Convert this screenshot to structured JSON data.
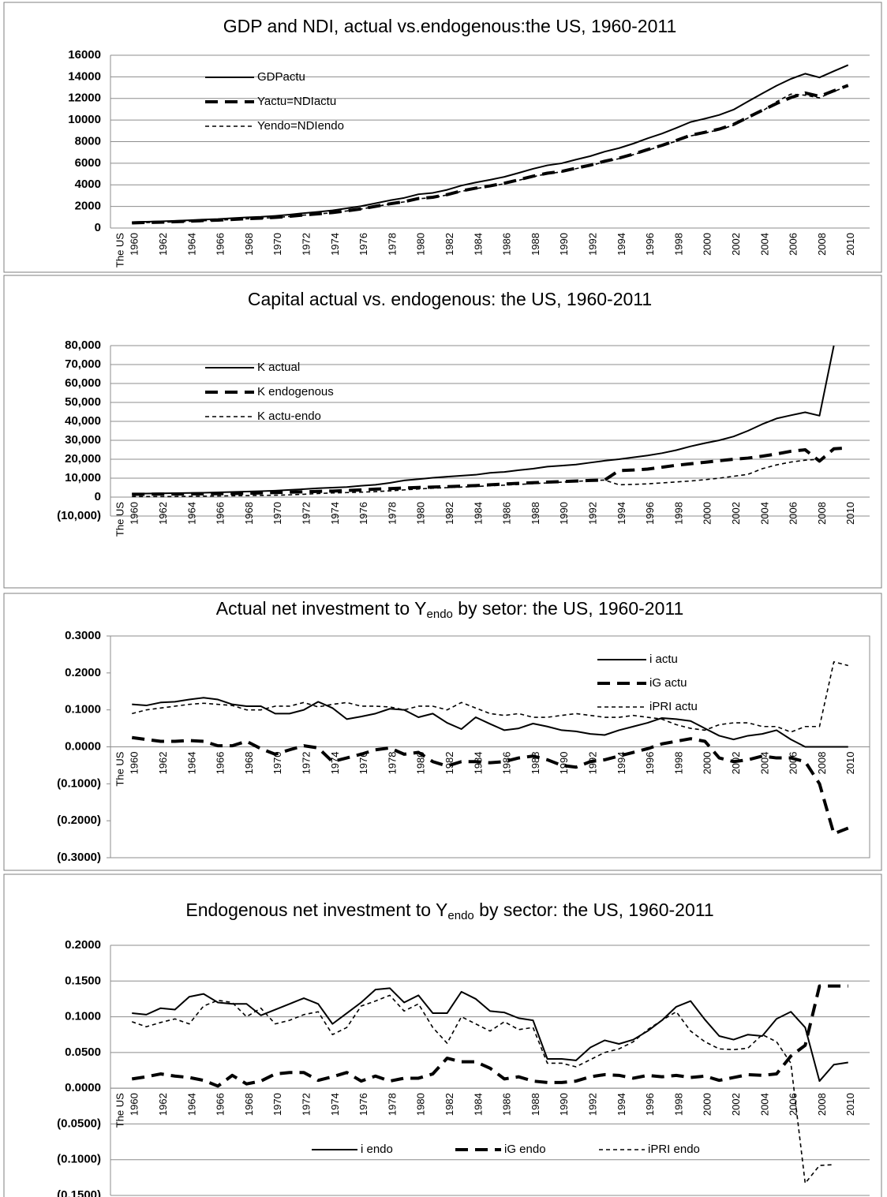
{
  "chart_data": [
    {
      "type": "line",
      "title": "GDP and NDI, actual vs.endogenous:the US, 1960-2011",
      "categories": [
        "The US",
        "1960",
        null,
        "1962",
        null,
        "1964",
        null,
        "1966",
        null,
        "1968",
        null,
        "1970",
        null,
        "1972",
        null,
        "1974",
        null,
        "1976",
        null,
        "1978",
        null,
        "1980",
        null,
        "1982",
        null,
        "1984",
        null,
        "1986",
        null,
        "1988",
        null,
        "1990",
        null,
        "1992",
        null,
        "1994",
        null,
        "1996",
        null,
        "1998",
        null,
        "2000",
        null,
        "2002",
        null,
        "2004",
        null,
        "2006",
        null,
        "2008",
        null,
        "2010",
        null
      ],
      "ylim": [
        0,
        16000
      ],
      "yticks": [
        0,
        2000,
        4000,
        6000,
        8000,
        10000,
        12000,
        14000,
        16000
      ],
      "grid": true,
      "legend": "upper left",
      "series": [
        {
          "name": "GDPactu",
          "color": "#000000",
          "line_style": "solid",
          "values": [
            null,
            545,
            586,
            618,
            664,
            719,
            788,
            833,
            910,
            985,
            1039,
            1127,
            1238,
            1383,
            1500,
            1638,
            1825,
            2030,
            2294,
            2563,
            2789,
            3128,
            3255,
            3537,
            3933,
            4220,
            4463,
            4740,
            5104,
            5484,
            5803,
            5996,
            6338,
            6657,
            7072,
            7398,
            7817,
            8304,
            8747,
            9268,
            9817,
            10128,
            10470,
            10961,
            11713,
            12456,
            13178,
            13808,
            14291,
            13939,
            14527,
            15094,
            null
          ]
        },
        {
          "name": "Yactu=NDIactu",
          "color": "#000000",
          "line_style": "long-dash",
          "values": [
            null,
            477,
            513,
            541,
            581,
            629,
            690,
            729,
            796,
            862,
            909,
            986,
            1083,
            1210,
            1313,
            1433,
            1597,
            1776,
            2007,
            2243,
            2440,
            2737,
            2848,
            3095,
            3441,
            3693,
            3905,
            4148,
            4466,
            4799,
            5078,
            5247,
            5546,
            5825,
            6188,
            6473,
            6840,
            7266,
            7654,
            8110,
            8590,
            8862,
            9161,
            9591,
            10249,
            10899,
            11531,
            12082,
            12505,
            12197,
            12711,
            13207,
            null
          ]
        },
        {
          "name": "Yendo=NDIendo",
          "color": "#000000",
          "line_style": "short-dash",
          "values": [
            null,
            470,
            505,
            535,
            575,
            620,
            680,
            720,
            785,
            850,
            900,
            975,
            1070,
            1195,
            1300,
            1420,
            1580,
            1760,
            1990,
            2220,
            2420,
            2710,
            2820,
            3060,
            3400,
            3650,
            3860,
            4100,
            4420,
            4750,
            5030,
            5200,
            5500,
            5780,
            6140,
            6420,
            6790,
            7210,
            7600,
            8050,
            8530,
            8800,
            9100,
            9520,
            10180,
            10820,
            11700,
            12400,
            12300,
            12050,
            12650,
            13150,
            null
          ]
        }
      ]
    },
    {
      "type": "line",
      "title": "Capital actual vs. endogenous: the US, 1960-2011",
      "categories": [
        "The US",
        "1960",
        null,
        "1962",
        null,
        "1964",
        null,
        "1966",
        null,
        "1968",
        null,
        "1970",
        null,
        "1972",
        null,
        "1974",
        null,
        "1976",
        null,
        "1978",
        null,
        "1980",
        null,
        "1982",
        null,
        "1984",
        null,
        "1986",
        null,
        "1988",
        null,
        "1990",
        null,
        "1992",
        null,
        "1994",
        null,
        "1996",
        null,
        "1998",
        null,
        "2000",
        null,
        "2002",
        null,
        "2004",
        null,
        "2006",
        null,
        "2008",
        null,
        "2010",
        null
      ],
      "ylim": [
        -10000,
        80000
      ],
      "yticks": [
        {
          "value": -10000,
          "label": "(10,000)"
        },
        0,
        {
          "value": 10000,
          "label": "10,000"
        },
        {
          "value": 20000,
          "label": "20,000"
        },
        {
          "value": 30000,
          "label": "30,000"
        },
        {
          "value": 40000,
          "label": "40,000"
        },
        {
          "value": 50000,
          "label": "50,000"
        },
        {
          "value": 60000,
          "label": "60,000"
        },
        {
          "value": 70000,
          "label": "70,000"
        },
        {
          "value": 80000,
          "label": "80,000"
        }
      ],
      "grid": true,
      "legend": "upper left",
      "series": [
        {
          "name": "K actual",
          "color": "#000000",
          "line_style": "solid",
          "values": [
            null,
            1800,
            1900,
            2000,
            2100,
            2200,
            2300,
            2500,
            2700,
            2900,
            3100,
            3400,
            3800,
            4200,
            4700,
            5000,
            5300,
            6000,
            6500,
            7500,
            8800,
            9500,
            10200,
            10800,
            11300,
            11800,
            12800,
            13300,
            14200,
            15000,
            16100,
            16600,
            17200,
            18200,
            19200,
            20000,
            21000,
            22000,
            23200,
            24800,
            26800,
            28500,
            30000,
            32000,
            35000,
            38500,
            41500,
            43200,
            44800,
            43000,
            80000,
            null,
            null
          ]
        },
        {
          "name": "K endogenous",
          "color": "#000000",
          "line_style": "long-dash",
          "values": [
            null,
            1500,
            1500,
            1600,
            1600,
            1700,
            1700,
            1800,
            1900,
            2000,
            2200,
            2400,
            2600,
            2800,
            3000,
            3200,
            3500,
            3800,
            4200,
            4500,
            4800,
            5100,
            5300,
            5500,
            5800,
            6100,
            6500,
            6900,
            7300,
            7600,
            7900,
            8200,
            8500,
            8800,
            9000,
            14000,
            14300,
            14800,
            15800,
            16800,
            17600,
            18400,
            19200,
            20000,
            20600,
            21600,
            22800,
            24200,
            25000,
            19000,
            25500,
            26000,
            null
          ]
        },
        {
          "name": "K actu-endo",
          "color": "#000000",
          "line_style": "short-dash",
          "values": [
            null,
            300,
            300,
            300,
            300,
            400,
            500,
            600,
            700,
            800,
            900,
            1000,
            1200,
            1500,
            1900,
            2200,
            2400,
            2600,
            2900,
            3300,
            3800,
            4300,
            4700,
            5000,
            5300,
            5600,
            6000,
            6300,
            6700,
            7100,
            7500,
            7900,
            8300,
            8700,
            9000,
            6500,
            6700,
            7000,
            7500,
            8000,
            8500,
            9200,
            10000,
            11000,
            12000,
            15000,
            17000,
            18500,
            19500,
            20000,
            null,
            null,
            null
          ]
        }
      ]
    },
    {
      "type": "line",
      "title": [
        "Actual net investment to Y",
        "endo",
        " by setor: the US, 1960-2011"
      ],
      "categories": [
        "The US",
        "1960",
        null,
        "1962",
        null,
        "1964",
        null,
        "1966",
        null,
        "1968",
        null,
        "1970",
        null,
        "1972",
        null,
        "1974",
        null,
        "1976",
        null,
        "1978",
        null,
        "1980",
        null,
        "1982",
        null,
        "1984",
        null,
        "1986",
        null,
        "1988",
        null,
        "1990",
        null,
        "1992",
        null,
        "1994",
        null,
        "1996",
        null,
        "1998",
        null,
        "2000",
        null,
        "2002",
        null,
        "2004",
        null,
        "2006",
        null,
        "2008",
        null,
        "2010",
        null
      ],
      "ylim": [
        -0.3,
        0.3
      ],
      "yticks": [
        {
          "value": -0.3,
          "label": "(0.3000)"
        },
        {
          "value": -0.2,
          "label": "(0.2000)"
        },
        {
          "value": -0.1,
          "label": "(0.1000)"
        },
        {
          "value": 0,
          "label": "0.0000"
        },
        {
          "value": 0.1,
          "label": "0.1000"
        },
        {
          "value": 0.2,
          "label": "0.2000"
        },
        {
          "value": 0.3,
          "label": "0.3000"
        }
      ],
      "grid": false,
      "legend": "upper right",
      "series": [
        {
          "name": "i actu",
          "color": "#000000",
          "line_style": "solid",
          "values": [
            null,
            0.115,
            0.112,
            0.12,
            0.122,
            0.128,
            0.133,
            0.128,
            0.115,
            0.11,
            0.11,
            0.09,
            0.09,
            0.1,
            0.122,
            0.105,
            0.075,
            0.082,
            0.09,
            0.103,
            0.1,
            0.08,
            0.09,
            0.065,
            0.048,
            0.08,
            0.062,
            0.045,
            0.05,
            0.063,
            0.055,
            0.045,
            0.042,
            0.035,
            0.032,
            0.045,
            0.055,
            0.065,
            0.078,
            0.075,
            0.07,
            0.05,
            0.03,
            0.02,
            0.03,
            0.035,
            0.045,
            0.02,
            0,
            0,
            0,
            0,
            null
          ]
        },
        {
          "name": "iG actu",
          "color": "#000000",
          "line_style": "long-dash",
          "values": [
            null,
            0.025,
            0.02,
            0.015,
            0.015,
            0.017,
            0.015,
            0.003,
            0.003,
            0.015,
            -0.005,
            -0.02,
            -0.008,
            0.003,
            -0.003,
            -0.04,
            -0.03,
            -0.02,
            -0.008,
            -0.003,
            -0.02,
            -0.015,
            -0.04,
            -0.052,
            -0.04,
            -0.04,
            -0.043,
            -0.04,
            -0.03,
            -0.025,
            -0.035,
            -0.05,
            -0.055,
            -0.04,
            -0.035,
            -0.025,
            -0.015,
            -0.005,
            0.008,
            0.015,
            0.022,
            0.015,
            -0.03,
            -0.04,
            -0.035,
            -0.025,
            -0.03,
            -0.03,
            -0.04,
            -0.1,
            -0.235,
            -0.22,
            null
          ]
        },
        {
          "name": "iPRI actu",
          "color": "#000000",
          "line_style": "short-dash",
          "values": [
            null,
            0.09,
            0.1,
            0.105,
            0.11,
            0.115,
            0.118,
            0.115,
            0.112,
            0.1,
            0.1,
            0.11,
            0.11,
            0.12,
            0.108,
            0.115,
            0.12,
            0.11,
            0.11,
            0.108,
            0.1,
            0.11,
            0.11,
            0.1,
            0.12,
            0.105,
            0.09,
            0.085,
            0.09,
            0.08,
            0.08,
            0.085,
            0.09,
            0.085,
            0.08,
            0.08,
            0.085,
            0.08,
            0.075,
            0.06,
            0.05,
            0.045,
            0.06,
            0.065,
            0.065,
            0.055,
            0.055,
            0.04,
            0.055,
            0.055,
            0.23,
            0.22,
            null
          ]
        }
      ]
    },
    {
      "type": "line",
      "title": [
        "Endogenous net investment to Y",
        "endo",
        " by sector: the US, 1960-2011"
      ],
      "categories": [
        "The US",
        "1960",
        null,
        "1962",
        null,
        "1964",
        null,
        "1966",
        null,
        "1968",
        null,
        "1970",
        null,
        "1972",
        null,
        "1974",
        null,
        "1976",
        null,
        "1978",
        null,
        "1980",
        null,
        "1982",
        null,
        "1984",
        null,
        "1986",
        null,
        "1988",
        null,
        "1990",
        null,
        "1992",
        null,
        "1994",
        null,
        "1996",
        null,
        "1998",
        null,
        "2000",
        null,
        "2002",
        null,
        "2004",
        null,
        "2006",
        null,
        "2008",
        null,
        "2010",
        null
      ],
      "ylim": [
        -0.15,
        0.2
      ],
      "yticks": [
        {
          "value": -0.15,
          "label": "(0.1500)"
        },
        {
          "value": -0.1,
          "label": "(0.1000)"
        },
        {
          "value": -0.05,
          "label": "(0.0500)"
        },
        {
          "value": 0,
          "label": "0.0000"
        },
        {
          "value": 0.05,
          "label": "0.0500"
        },
        {
          "value": 0.1,
          "label": "0.1000"
        },
        {
          "value": 0.15,
          "label": "0.1500"
        },
        {
          "value": 0.2,
          "label": "0.2000"
        }
      ],
      "grid": true,
      "legend": "lower center",
      "series": [
        {
          "name": "i endo",
          "color": "#000000",
          "line_style": "solid",
          "values": [
            null,
            0.105,
            0.103,
            0.112,
            0.11,
            0.128,
            0.132,
            0.12,
            0.118,
            0.118,
            0.102,
            0.11,
            0.118,
            0.126,
            0.118,
            0.09,
            0.105,
            0.12,
            0.138,
            0.14,
            0.12,
            0.13,
            0.105,
            0.105,
            0.135,
            0.125,
            0.108,
            0.106,
            0.098,
            0.095,
            0.041,
            0.041,
            0.039,
            0.057,
            0.067,
            0.062,
            0.068,
            0.08,
            0.095,
            0.114,
            0.122,
            0.096,
            0.073,
            0.068,
            0.075,
            0.073,
            0.097,
            0.107,
            0.085,
            0.01,
            0.033,
            0.036,
            null
          ]
        },
        {
          "name": "iG endo",
          "color": "#000000",
          "line_style": "long-dash",
          "values": [
            null,
            0.013,
            0.016,
            0.02,
            0.017,
            0.015,
            0.011,
            0.003,
            0.018,
            0.006,
            0.01,
            0.02,
            0.022,
            0.022,
            0.011,
            0.016,
            0.022,
            0.01,
            0.017,
            0.01,
            0.014,
            0.014,
            0.02,
            0.042,
            0.037,
            0.037,
            0.028,
            0.013,
            0.016,
            0.01,
            0.008,
            0.008,
            0.01,
            0.016,
            0.019,
            0.018,
            0.014,
            0.018,
            0.016,
            0.018,
            0.015,
            0.017,
            0.011,
            0.015,
            0.019,
            0.018,
            0.02,
            0.045,
            0.06,
            0.143,
            0.143,
            0.143,
            null
          ]
        },
        {
          "name": "iPRI endo",
          "color": "#000000",
          "line_style": "short-dash",
          "values": [
            null,
            0.093,
            0.086,
            0.092,
            0.097,
            0.09,
            0.115,
            0.123,
            0.12,
            0.1,
            0.112,
            0.09,
            0.095,
            0.103,
            0.107,
            0.075,
            0.085,
            0.115,
            0.122,
            0.13,
            0.108,
            0.118,
            0.085,
            0.063,
            0.1,
            0.09,
            0.08,
            0.093,
            0.082,
            0.085,
            0.035,
            0.035,
            0.03,
            0.04,
            0.05,
            0.055,
            0.065,
            0.082,
            0.095,
            0.107,
            0.08,
            0.065,
            0.055,
            0.054,
            0.056,
            0.075,
            0.065,
            0.035,
            -0.133,
            -0.108,
            -0.107,
            null,
            null
          ]
        }
      ]
    }
  ]
}
